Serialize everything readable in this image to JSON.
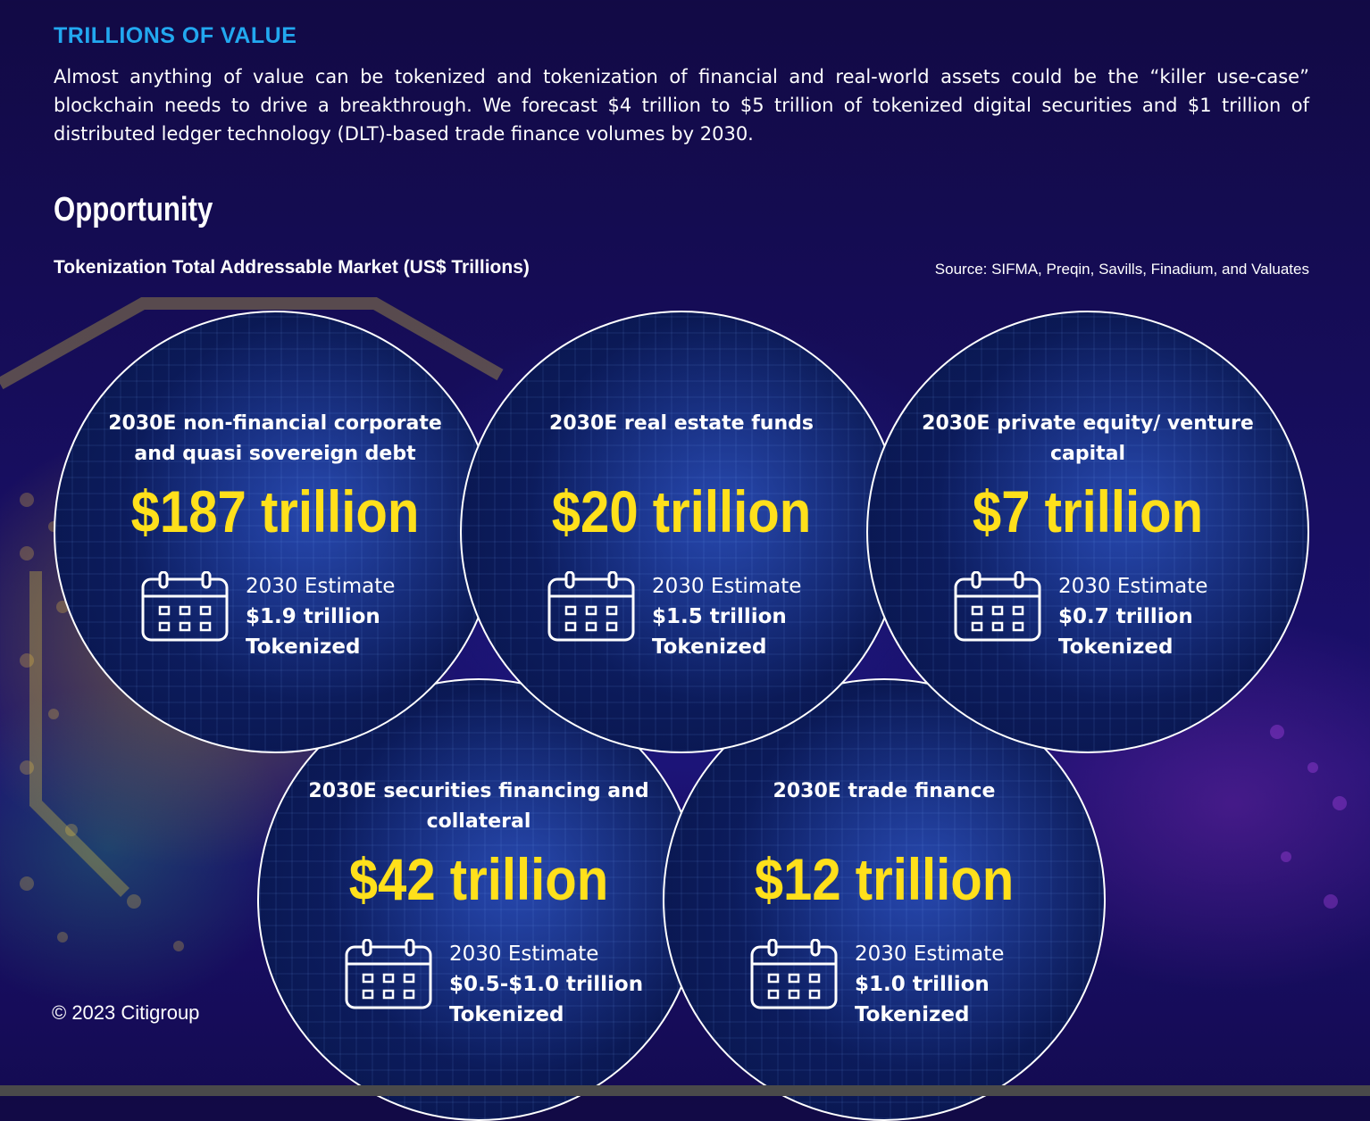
{
  "header": {
    "label": "TRILLIONS OF VALUE",
    "intro": "Almost anything of value can be tokenized and tokenization of financial and real-world assets could be the “killer use-case” blockchain needs to drive a breakthrough. We forecast $4 trillion to $5 trillion of tokenized digital securities and $1 trillion of distributed ledger technology (DLT)-based trade finance volumes by 2030."
  },
  "section": {
    "title": "Opportunity",
    "chart_title": "Tokenization Total Addressable Market (US$ Trillions)",
    "source": "Source: SIFMA, Preqin, Savills, Finadium, and Valuates"
  },
  "markets": [
    {
      "category": "2030E non-financial corporate and quasi sovereign debt",
      "value": "$187 trillion",
      "estimate_label": "2030 Estimate",
      "tokenized_amount": "$1.9 trillion",
      "tokenized_label": "Tokenized"
    },
    {
      "category": "2030E real estate funds",
      "value": "$20 trillion",
      "estimate_label": "2030 Estimate",
      "tokenized_amount": "$1.5 trillion",
      "tokenized_label": "Tokenized"
    },
    {
      "category": "2030E private equity/ venture capital",
      "value": "$7 trillion",
      "estimate_label": "2030 Estimate",
      "tokenized_amount": "$0.7 trillion",
      "tokenized_label": "Tokenized"
    },
    {
      "category": "2030E securities financing and collateral",
      "value": "$42 trillion",
      "estimate_label": "2030 Estimate",
      "tokenized_amount": "$0.5-$1.0 trillion",
      "tokenized_label": "Tokenized"
    },
    {
      "category": "2030E trade finance",
      "value": "$12 trillion",
      "estimate_label": "2030 Estimate",
      "tokenized_amount": "$1.0 trillion",
      "tokenized_label": "Tokenized"
    }
  ],
  "footer": {
    "copyright": "© 2023 Citigroup"
  },
  "colors": {
    "header_accent": "#22a8f0",
    "value_highlight": "#ffe01b",
    "background": "#160d5a"
  },
  "icons": [
    "calendar-icon"
  ]
}
